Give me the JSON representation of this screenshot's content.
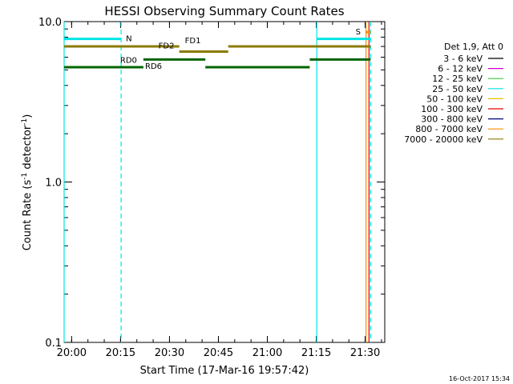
{
  "chart_data": {
    "type": "line",
    "title": "HESSI Observing Summary Count Rates",
    "xlabel": "Start Time (17-Mar-16 19:57:42)",
    "ylabel_main": "Count Rate (s",
    "ylabel_sup1": "-1",
    "ylabel_mid": " detector",
    "ylabel_sup2": "-1",
    "ylabel_end": ")",
    "yscale": "log",
    "ylim": [
      0.1,
      10.0
    ],
    "xlim": [
      "19:57:42",
      "21:36:00"
    ],
    "x_ticks": [
      "20:00",
      "20:15",
      "20:30",
      "20:45",
      "21:00",
      "21:15",
      "21:30"
    ],
    "y_ticks": [
      "0.1",
      "1.0",
      "10.0"
    ],
    "timestamp": "16-Oct-2017 15:34",
    "legend": {
      "title": "Det 1,9, Att 0",
      "entries": [
        {
          "label": "3 - 6 keV",
          "color": "#000000"
        },
        {
          "label": "6 - 12 keV",
          "color": "#cc00cc"
        },
        {
          "label": "12 - 25 keV",
          "color": "#33cc33"
        },
        {
          "label": "25 - 50 keV",
          "color": "#00e5e5"
        },
        {
          "label": "50 - 100 keV",
          "color": "#e5c000"
        },
        {
          "label": "100 - 300 keV",
          "color": "#e60000"
        },
        {
          "label": "300 - 800 keV",
          "color": "#000080"
        },
        {
          "label": "800 - 7000 keV",
          "color": "#ff8c00"
        },
        {
          "label": "7000 - 20000 keV",
          "color": "#8b7a00"
        }
      ]
    },
    "vertical_lines": [
      {
        "time": "19:57:42",
        "style": "solid",
        "color": "#00e5e5"
      },
      {
        "time": "20:15:10",
        "style": "dashed",
        "color": "#00e5e5"
      },
      {
        "time": "21:15:10",
        "style": "solid",
        "color": "#00e5e5"
      },
      {
        "time": "21:31:40",
        "style": "dashed",
        "color": "#00e5e5"
      },
      {
        "time": "21:30:15",
        "style": "solid",
        "color": "#ff8c00"
      },
      {
        "time": "21:31:10",
        "style": "solid",
        "color": "#e60000"
      }
    ],
    "flag_bars": [
      {
        "label": "N",
        "start": "19:57:42",
        "end": "20:15:10",
        "y": 7.8,
        "color": "#00e5e5"
      },
      {
        "label": "",
        "start": "21:15:10",
        "end": "21:31:40",
        "y": 7.8,
        "color": "#00e5e5"
      },
      {
        "label": "S",
        "start": "21:30:15",
        "end": "21:31:40",
        "y": 8.6,
        "color": "#ff8c00"
      },
      {
        "label": "FD1",
        "start": "19:57:42",
        "end": "20:33:00",
        "y": 7.0,
        "color": "#8b7a00"
      },
      {
        "label": "FD2",
        "start": "20:33:00",
        "end": "20:48:00",
        "y": 6.5,
        "color": "#8b7a00"
      },
      {
        "label": "",
        "start": "20:48:00",
        "end": "21:31:40",
        "y": 7.0,
        "color": "#8b7a00"
      },
      {
        "label": "RD0",
        "start": "20:22:00",
        "end": "20:41:00",
        "y": 5.8,
        "color": "#006400"
      },
      {
        "label": "RD6",
        "start": "19:57:42",
        "end": "20:22:00",
        "y": 5.2,
        "color": "#006400"
      },
      {
        "label": "",
        "start": "20:41:00",
        "end": "21:13:00",
        "y": 5.2,
        "color": "#006400"
      },
      {
        "label": "",
        "start": "21:13:00",
        "end": "21:31:40",
        "y": 5.8,
        "color": "#006400"
      }
    ]
  }
}
